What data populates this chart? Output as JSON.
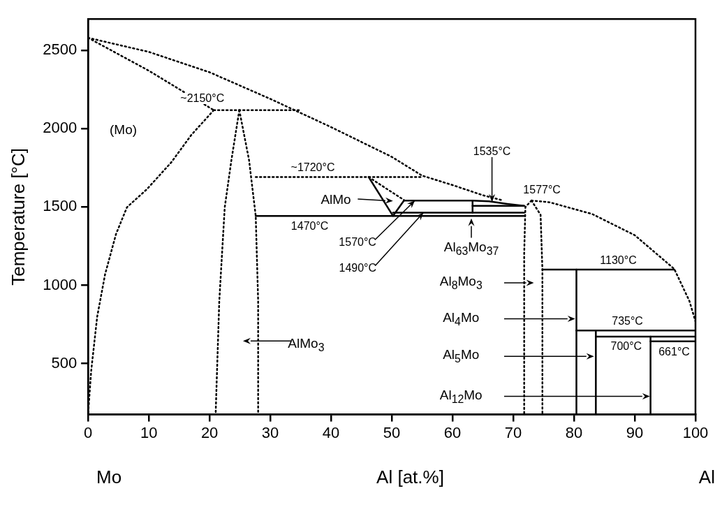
{
  "chart_data": {
    "type": "line",
    "ylabel": "Temperature [°C]",
    "xlabel": "Al [at.%]",
    "xlim": [
      0,
      100
    ],
    "xticks": [
      0,
      10,
      20,
      30,
      40,
      50,
      60,
      70,
      80,
      90,
      100
    ],
    "ylim": [
      175,
      2700
    ],
    "yticks": [
      500,
      1000,
      1500,
      2000,
      2500
    ],
    "grid": false,
    "legend": false,
    "marker": "none",
    "series": [
      {
        "line_style": "dotted",
        "color": "#000000",
        "x": [
          0,
          10,
          20,
          30,
          40,
          50,
          55,
          60,
          65,
          68
        ],
        "values": [
          2580,
          2490,
          2360,
          2190,
          2010,
          1820,
          1700,
          1640,
          1575,
          1545
        ]
      },
      {
        "line_style": "dotted",
        "color": "#000000",
        "x": [
          73,
          76,
          83,
          90,
          96.5,
          99,
          100
        ],
        "values": [
          1541,
          1530,
          1455,
          1320,
          1105,
          900,
          770
        ]
      },
      {
        "line_style": "dotted",
        "color": "#000000",
        "x": [
          0,
          10,
          20.7
        ],
        "values": [
          2580,
          2370,
          2118
        ]
      },
      {
        "line_style": "dotted",
        "color": "#000000",
        "x": [
          20.7,
          17,
          13.7,
          9.7,
          6.4,
          4.6,
          2.8,
          1.5,
          0.5,
          0
        ],
        "values": [
          2118,
          1960,
          1785,
          1614,
          1498,
          1327,
          1070,
          800,
          450,
          175
        ]
      },
      {
        "line_style": "dotted",
        "color": "#000000",
        "x": [
          24.9,
          23.6,
          22.5,
          21.6,
          21
        ],
        "values": [
          2118,
          1800,
          1498,
          900,
          175
        ]
      },
      {
        "line_style": "dotted",
        "color": "#000000",
        "x": [
          24.9,
          26.5,
          27.6,
          28,
          28
        ],
        "values": [
          2118,
          1800,
          1443,
          900,
          175
        ]
      },
      {
        "line_style": "dotted",
        "color": "#000000",
        "x": [
          20.7,
          34.7
        ],
        "values": [
          2118,
          2118
        ]
      },
      {
        "line_style": "dotted",
        "color": "#000000",
        "x": [
          27.6,
          55
        ],
        "values": [
          1691,
          1691
        ]
      },
      {
        "line_style": "dotted",
        "color": "#000000",
        "x": [
          46.2,
          49,
          52
        ],
        "values": [
          1691,
          1620,
          1545
        ]
      },
      {
        "line_style": "dotted",
        "color": "#000000",
        "x": [
          73,
          72,
          71.8,
          71.8
        ],
        "values": [
          1541,
          1500,
          1200,
          175
        ]
      },
      {
        "line_style": "dotted",
        "color": "#000000",
        "x": [
          73,
          74.5,
          74.8,
          74.8
        ],
        "values": [
          1541,
          1450,
          1100,
          175
        ]
      },
      {
        "line_style": "solid",
        "color": "#000000",
        "x": [
          27.6,
          71.8
        ],
        "values": [
          1443,
          1443
        ]
      },
      {
        "line_style": "solid",
        "color": "#000000",
        "x": [
          50.2,
          71.8
        ],
        "values": [
          1464,
          1464
        ]
      },
      {
        "line_style": "solid",
        "color": "#000000",
        "x": [
          63.3,
          71.8
        ],
        "values": [
          1507,
          1507
        ]
      },
      {
        "line_style": "solid",
        "color": "#000000",
        "x": [
          52,
          63.3,
          66,
          69,
          71.8
        ],
        "values": [
          1541,
          1541,
          1536,
          1520,
          1507
        ]
      },
      {
        "line_style": "solid",
        "color": "#000000",
        "x": [
          63.3,
          63.3
        ],
        "values": [
          1464,
          1541
        ]
      },
      {
        "line_style": "solid",
        "color": "#000000",
        "x": [
          46.2,
          50.2,
          52
        ],
        "values": [
          1691,
          1443,
          1541
        ]
      },
      {
        "line_style": "solid",
        "color": "#000000",
        "x": [
          74.8,
          96.5
        ],
        "values": [
          1100,
          1100
        ]
      },
      {
        "line_style": "solid",
        "color": "#000000",
        "x": [
          80.4,
          80.4
        ],
        "values": [
          1100,
          175
        ]
      },
      {
        "line_style": "solid",
        "color": "#000000",
        "x": [
          80.4,
          100
        ],
        "values": [
          711,
          711
        ]
      },
      {
        "line_style": "solid",
        "color": "#000000",
        "x": [
          83.6,
          100
        ],
        "values": [
          672,
          672
        ]
      },
      {
        "line_style": "solid",
        "color": "#000000",
        "x": [
          92.6,
          100
        ],
        "values": [
          642,
          642
        ]
      },
      {
        "line_style": "solid",
        "color": "#000000",
        "x": [
          83.6,
          83.6
        ],
        "values": [
          711,
          175
        ]
      },
      {
        "line_style": "solid",
        "color": "#000000",
        "x": [
          92.6,
          92.6
        ],
        "values": [
          672,
          175
        ]
      }
    ],
    "annotations": [
      {
        "text": "~2150°C",
        "x": 24.9,
        "y": 2118
      },
      {
        "text": "~1720°C",
        "x": 37,
        "y": 1691
      },
      {
        "text": "1470°C",
        "x": 36.5,
        "y": 1443
      },
      {
        "text": "1577°C",
        "x": 73,
        "y": 1541
      },
      {
        "text": "1130°C",
        "x": 87.3,
        "y": 1100
      },
      {
        "text": "735°C",
        "x": 88.8,
        "y": 711
      },
      {
        "text": "700°C",
        "x": 88.6,
        "y": 672
      },
      {
        "text": "661°C",
        "x": 96.5,
        "y": 642
      },
      {
        "text": "1570°C",
        "x": 53.8,
        "y": 1541
      },
      {
        "text": "1490°C",
        "x": 55.2,
        "y": 1464
      },
      {
        "text": "1535°C",
        "x": 66.5,
        "y": 1533
      },
      "(Mo)",
      "AlMo",
      "Al$_{63}$Mo$_{37}$",
      "Al$_{8}$Mo$_{3}$",
      "Al$_{4}$Mo",
      "Al$_{5}$Mo",
      "Al$_{12}$Mo",
      "AlMo$_{3}$",
      "Mo",
      "Al"
    ]
  }
}
